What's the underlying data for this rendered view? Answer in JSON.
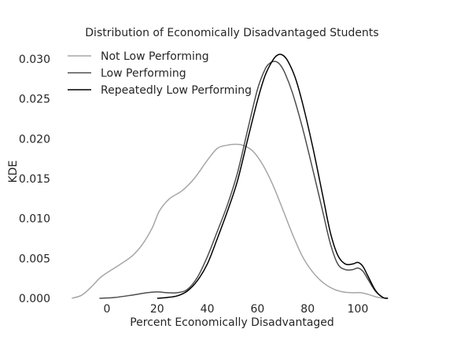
{
  "chart_data": {
    "type": "line",
    "title": "Distribution of Economically Disadvantaged Students",
    "xlabel": "Percent Economically Disadvantaged",
    "ylabel": "KDE",
    "xlim": [
      -15,
      112
    ],
    "ylim": [
      0,
      0.031
    ],
    "xticks": [
      0,
      20,
      40,
      60,
      80,
      100
    ],
    "xtick_labels": [
      "0",
      "20",
      "40",
      "60",
      "80",
      "100"
    ],
    "yticks": [
      0.0,
      0.005,
      0.01,
      0.015,
      0.02,
      0.025,
      0.03
    ],
    "ytick_labels": [
      "0.000",
      "0.005",
      "0.010",
      "0.015",
      "0.020",
      "0.025",
      "0.030"
    ],
    "grid": false,
    "legend_position": "top-left",
    "series": [
      {
        "name": "Not Low Performing",
        "color": "#a6a6a6",
        "points": [
          [
            -14,
            0
          ],
          [
            -10,
            0.0004
          ],
          [
            -6,
            0.0015
          ],
          [
            -3,
            0.0025
          ],
          [
            0,
            0.0032
          ],
          [
            5,
            0.0042
          ],
          [
            10,
            0.0053
          ],
          [
            14,
            0.0067
          ],
          [
            18,
            0.0088
          ],
          [
            21,
            0.011
          ],
          [
            25,
            0.0125
          ],
          [
            30,
            0.0135
          ],
          [
            35,
            0.0151
          ],
          [
            40,
            0.0173
          ],
          [
            44,
            0.0188
          ],
          [
            48,
            0.0192
          ],
          [
            51,
            0.0193
          ],
          [
            54,
            0.0192
          ],
          [
            58,
            0.0185
          ],
          [
            62,
            0.0168
          ],
          [
            66,
            0.0143
          ],
          [
            70,
            0.0112
          ],
          [
            74,
            0.008
          ],
          [
            78,
            0.0052
          ],
          [
            82,
            0.0033
          ],
          [
            86,
            0.002
          ],
          [
            90,
            0.0012
          ],
          [
            94,
            0.0008
          ],
          [
            98,
            0.0007
          ],
          [
            101,
            0.0007
          ],
          [
            104,
            0.0005
          ],
          [
            107,
            0.0002
          ],
          [
            110,
            0.0
          ]
        ]
      },
      {
        "name": "Low Performing",
        "color": "#4d4d4d",
        "points": [
          [
            -3,
            0
          ],
          [
            3,
            0.0001
          ],
          [
            10,
            0.0004
          ],
          [
            16,
            0.0007
          ],
          [
            20,
            0.0008
          ],
          [
            24,
            0.0007
          ],
          [
            28,
            0.0007
          ],
          [
            32,
            0.0011
          ],
          [
            36,
            0.0026
          ],
          [
            40,
            0.0052
          ],
          [
            44,
            0.0084
          ],
          [
            48,
            0.0117
          ],
          [
            52,
            0.0157
          ],
          [
            56,
            0.021
          ],
          [
            60,
            0.0262
          ],
          [
            63,
            0.0287
          ],
          [
            65,
            0.0295
          ],
          [
            67,
            0.0297
          ],
          [
            69,
            0.0293
          ],
          [
            71,
            0.0282
          ],
          [
            74,
            0.0257
          ],
          [
            78,
            0.0213
          ],
          [
            82,
            0.0162
          ],
          [
            86,
            0.0109
          ],
          [
            89,
            0.0069
          ],
          [
            92,
            0.0043
          ],
          [
            95,
            0.0036
          ],
          [
            98,
            0.0036
          ],
          [
            100,
            0.0038
          ],
          [
            102,
            0.0034
          ],
          [
            104,
            0.0024
          ],
          [
            107,
            0.0009
          ],
          [
            110,
            0.0001
          ],
          [
            112,
            0.0
          ]
        ]
      },
      {
        "name": "Repeatedly Low Performing",
        "color": "#000000",
        "points": [
          [
            20,
            0
          ],
          [
            24,
            0.0001
          ],
          [
            28,
            0.0003
          ],
          [
            32,
            0.0009
          ],
          [
            36,
            0.0022
          ],
          [
            40,
            0.0043
          ],
          [
            44,
            0.0075
          ],
          [
            48,
            0.0109
          ],
          [
            52,
            0.0147
          ],
          [
            56,
            0.0198
          ],
          [
            60,
            0.0248
          ],
          [
            63,
            0.0279
          ],
          [
            66,
            0.0298
          ],
          [
            68,
            0.0305
          ],
          [
            70,
            0.0305
          ],
          [
            72,
            0.0298
          ],
          [
            75,
            0.0277
          ],
          [
            78,
            0.0244
          ],
          [
            82,
            0.019
          ],
          [
            86,
            0.0129
          ],
          [
            89,
            0.0083
          ],
          [
            92,
            0.0054
          ],
          [
            95,
            0.0043
          ],
          [
            98,
            0.0043
          ],
          [
            100,
            0.0045
          ],
          [
            102,
            0.004
          ],
          [
            104,
            0.0028
          ],
          [
            107,
            0.001
          ],
          [
            110,
            0.0001
          ],
          [
            112,
            0.0
          ]
        ]
      }
    ]
  }
}
